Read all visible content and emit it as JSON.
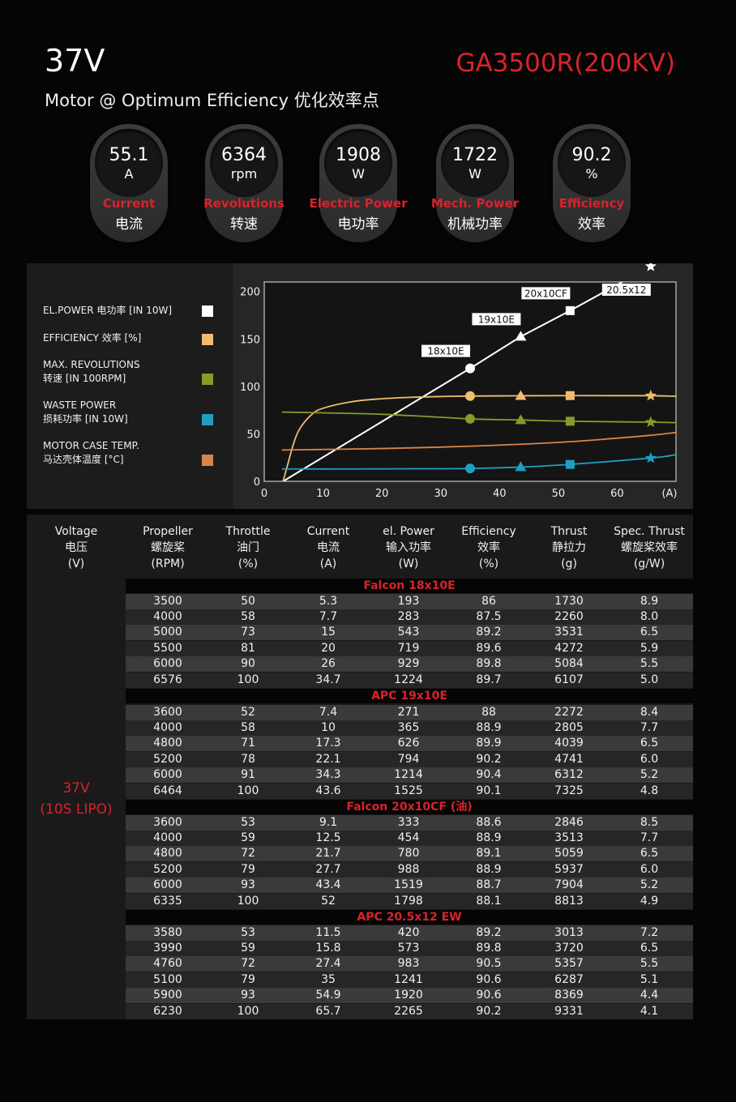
{
  "header": {
    "voltage": "37V",
    "subtitle": "Motor @ Optimum Efficiency  优化效率点",
    "model": "GA3500R(200KV)"
  },
  "badges": [
    {
      "value": "55.1",
      "unit": "A",
      "label_en": "Current",
      "label_cn": "电流"
    },
    {
      "value": "6364",
      "unit": "rpm",
      "label_en": "Revolutions",
      "label_cn": "转速"
    },
    {
      "value": "1908",
      "unit": "W",
      "label_en": "Electric Power",
      "label_cn": "电功率"
    },
    {
      "value": "1722",
      "unit": "W",
      "label_en": "Mech. Power",
      "label_cn": "机械功率"
    },
    {
      "value": "90.2",
      "unit": "%",
      "label_en": "Efficiency",
      "label_cn": "效率"
    }
  ],
  "legend": [
    {
      "line1": "EL.POWER 电功率 [IN 10W]",
      "line2": "",
      "color": "#ffffff"
    },
    {
      "line1": "EFFICIENCY 效率 [%]",
      "line2": "",
      "color": "#f0bd6e"
    },
    {
      "line1": "MAX. REVOLUTIONS",
      "line2": "转速 [IN 100RPM]",
      "color": "#8a9a2a"
    },
    {
      "line1": "WASTE POWER",
      "line2": "损耗功率 [IN 10W]",
      "color": "#1e9fc0"
    },
    {
      "line1": "MOTOR CASE TEMP.",
      "line2": "马达壳体温度 [°C]",
      "color": "#d98448"
    }
  ],
  "chart_data": {
    "type": "line",
    "x_unit_label": "(A)",
    "xlim": [
      0,
      70
    ],
    "ylim": [
      0,
      210
    ],
    "x_ticks": [
      0,
      10,
      20,
      30,
      40,
      50,
      60
    ],
    "y_ticks": [
      0,
      50,
      100,
      150,
      200
    ],
    "grid": false,
    "legend_position": "left-panel",
    "series": [
      {
        "name": "EL.POWER 电功率 [IN 10W]",
        "color": "#ffffff",
        "x": [
          3.2,
          35,
          43.6,
          52,
          65.7,
          70
        ],
        "y": [
          0,
          119,
          152.5,
          179.8,
          226.5,
          240
        ]
      },
      {
        "name": "EFFICIENCY 效率 [%]",
        "color": "#f0bd6e",
        "x": [
          3.2,
          4,
          5,
          6,
          8,
          10,
          15,
          20,
          25,
          30,
          35,
          43.6,
          52,
          60,
          65.7,
          70
        ],
        "y": [
          0,
          18,
          40,
          55,
          70,
          77,
          84,
          87,
          88.5,
          89.3,
          89.8,
          90.1,
          90.3,
          90.2,
          90.2,
          89.6
        ]
      },
      {
        "name": "MAX. REVOLUTIONS 转速 [IN 100RPM]",
        "color": "#8a9a2a",
        "x": [
          3,
          20,
          35,
          43.6,
          52,
          65.7,
          70
        ],
        "y": [
          73,
          70.6,
          65.8,
          64.6,
          63.3,
          62.3,
          61.8
        ]
      },
      {
        "name": "WASTE POWER 损耗功率 [IN 10W]",
        "color": "#1e9fc0",
        "x": [
          3,
          15,
          25,
          35,
          43.6,
          52,
          65.7,
          70
        ],
        "y": [
          13,
          13,
          13.2,
          13.5,
          15,
          17.8,
          24.5,
          28
        ]
      },
      {
        "name": "MOTOR CASE TEMP. 马达壳体温度 [°C]",
        "color": "#d98448",
        "x": [
          3,
          20,
          35,
          50,
          60,
          65.7,
          70
        ],
        "y": [
          33,
          34.5,
          37,
          41,
          45.5,
          48.5,
          51.5
        ]
      }
    ],
    "operating_points": [
      {
        "label": "18x10E",
        "marker": "circle",
        "x": 35,
        "el_power": 119,
        "efficiency": 89.8,
        "revolutions": 65.8,
        "waste_power": 13.5
      },
      {
        "label": "19x10E",
        "marker": "triangle",
        "x": 43.6,
        "el_power": 152.5,
        "efficiency": 90.1,
        "revolutions": 64.6,
        "waste_power": 15
      },
      {
        "label": "20x10CF",
        "marker": "square",
        "x": 52,
        "el_power": 179.8,
        "efficiency": 90.3,
        "revolutions": 63.3,
        "waste_power": 17.8
      },
      {
        "label": "20.5x12",
        "marker": "star",
        "x": 65.7,
        "el_power": 226.5,
        "efficiency": 90.2,
        "revolutions": 62.3,
        "waste_power": 24.5
      }
    ]
  },
  "table": {
    "headers": [
      {
        "en": "Voltage",
        "cn": "电压",
        "unit": "(V)"
      },
      {
        "en": "Propeller",
        "cn": "螺旋桨",
        "unit": "(RPM)"
      },
      {
        "en": "Throttle",
        "cn": "油门",
        "unit": "(%)"
      },
      {
        "en": "Current",
        "cn": "电流",
        "unit": "(A)"
      },
      {
        "en": "el. Power",
        "cn": "输入功率",
        "unit": "(W)"
      },
      {
        "en": "Efficiency",
        "cn": "效率",
        "unit": "(%)"
      },
      {
        "en": "Thrust",
        "cn": "静拉力",
        "unit": "(g)"
      },
      {
        "en": "Spec. Thrust",
        "cn": "螺旋桨效率",
        "unit": "(g/W)"
      }
    ],
    "voltage_line1": "37V",
    "voltage_line2": "(10S LIPO)",
    "groups": [
      {
        "title": "Falcon 18x10E",
        "rows": [
          [
            "3500",
            "50",
            "5.3",
            "193",
            "86",
            "1730",
            "8.9"
          ],
          [
            "4000",
            "58",
            "7.7",
            "283",
            "87.5",
            "2260",
            "8.0"
          ],
          [
            "5000",
            "73",
            "15",
            "543",
            "89.2",
            "3531",
            "6.5"
          ],
          [
            "5500",
            "81",
            "20",
            "719",
            "89.6",
            "4272",
            "5.9"
          ],
          [
            "6000",
            "90",
            "26",
            "929",
            "89.8",
            "5084",
            "5.5"
          ],
          [
            "6576",
            "100",
            "34.7",
            "1224",
            "89.7",
            "6107",
            "5.0"
          ]
        ]
      },
      {
        "title": "APC 19x10E",
        "rows": [
          [
            "3600",
            "52",
            "7.4",
            "271",
            "88",
            "2272",
            "8.4"
          ],
          [
            "4000",
            "58",
            "10",
            "365",
            "88.9",
            "2805",
            "7.7"
          ],
          [
            "4800",
            "71",
            "17.3",
            "626",
            "89.9",
            "4039",
            "6.5"
          ],
          [
            "5200",
            "78",
            "22.1",
            "794",
            "90.2",
            "4741",
            "6.0"
          ],
          [
            "6000",
            "91",
            "34.3",
            "1214",
            "90.4",
            "6312",
            "5.2"
          ],
          [
            "6464",
            "100",
            "43.6",
            "1525",
            "90.1",
            "7325",
            "4.8"
          ]
        ]
      },
      {
        "title": "Falcon 20x10CF (油)",
        "rows": [
          [
            "3600",
            "53",
            "9.1",
            "333",
            "88.6",
            "2846",
            "8.5"
          ],
          [
            "4000",
            "59",
            "12.5",
            "454",
            "88.9",
            "3513",
            "7.7"
          ],
          [
            "4800",
            "72",
            "21.7",
            "780",
            "89.1",
            "5059",
            "6.5"
          ],
          [
            "5200",
            "79",
            "27.7",
            "988",
            "88.9",
            "5937",
            "6.0"
          ],
          [
            "6000",
            "93",
            "43.4",
            "1519",
            "88.7",
            "7904",
            "5.2"
          ],
          [
            "6335",
            "100",
            "52",
            "1798",
            "88.1",
            "8813",
            "4.9"
          ]
        ]
      },
      {
        "title": "APC 20.5x12 EW",
        "rows": [
          [
            "3580",
            "53",
            "11.5",
            "420",
            "89.2",
            "3013",
            "7.2"
          ],
          [
            "3990",
            "59",
            "15.8",
            "573",
            "89.8",
            "3720",
            "6.5"
          ],
          [
            "4760",
            "72",
            "27.4",
            "983",
            "90.5",
            "5357",
            "5.5"
          ],
          [
            "5100",
            "79",
            "35",
            "1241",
            "90.6",
            "6287",
            "5.1"
          ],
          [
            "5900",
            "93",
            "54.9",
            "1920",
            "90.6",
            "8369",
            "4.4"
          ],
          [
            "6230",
            "100",
            "65.7",
            "2265",
            "90.2",
            "9331",
            "4.1"
          ]
        ]
      }
    ]
  }
}
